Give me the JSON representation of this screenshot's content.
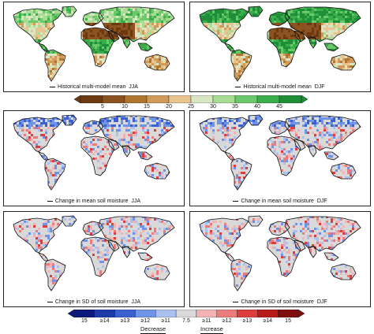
{
  "panels": [
    {
      "label": "Historical multi-model mean",
      "season": "JJA",
      "kind": "hist_jja"
    },
    {
      "label": "Historical multi-model mean",
      "season": "DJF",
      "kind": "hist_djf"
    },
    {
      "label": "Change in mean soil moisture",
      "season": "JJA",
      "kind": "change_mean"
    },
    {
      "label": "Change in mean soil moisture",
      "season": "DJF",
      "kind": "change_mean"
    },
    {
      "label": "Change in SD of soil moisture",
      "season": "JJA",
      "kind": "change_sd"
    },
    {
      "label": "Change in SD of soil moisture",
      "season": "DJF",
      "kind": "change_sd"
    }
  ],
  "colorbar_top": {
    "ticks": [
      "5",
      "10",
      "15",
      "20",
      "25",
      "30",
      "35",
      "40",
      "45"
    ],
    "colors": [
      "#6b3a12",
      "#8c5220",
      "#b0762f",
      "#d09a5a",
      "#e8c48f",
      "#d8e6c4",
      "#a8dc94",
      "#6cc86a",
      "#3aae4a",
      "#1e8f38"
    ]
  },
  "colorbar_bottom": {
    "ticks": [
      "15",
      "≥14",
      "≥13",
      "≥12",
      "≥11",
      "7.5",
      "≥11",
      "≥12",
      "≥13",
      "≥14",
      "15"
    ],
    "decrease_label": "Decrease",
    "increase_label": "Increase",
    "colors": [
      "#0b1a7a",
      "#1e3aa8",
      "#3b62d0",
      "#6f93e6",
      "#a9c0f0",
      "#d9d9d9",
      "#f3b3b3",
      "#ec7c7c",
      "#dd3d3d",
      "#b81b1b",
      "#7e0d0d"
    ]
  }
}
